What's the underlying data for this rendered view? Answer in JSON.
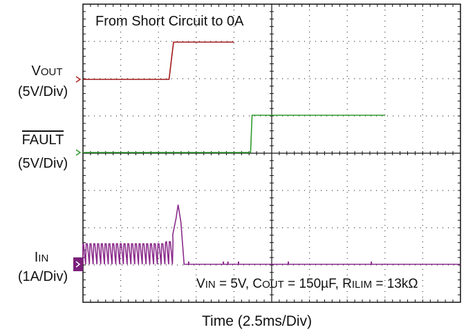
{
  "chart_data": {
    "type": "line",
    "title": "From Short Circuit to 0A",
    "xlabel": "Time  (2.5ms/Div)",
    "x_unit_per_div": 2.5,
    "x_divisions": 10,
    "y_divisions": 8,
    "grid": "dotted",
    "series": [
      {
        "name": "VOUT",
        "label_main": "V",
        "label_sub": "OUT",
        "scale": "(5V/Div)",
        "color": "#a01919",
        "marker_color": "#b22222",
        "points": [
          [
            0,
            0
          ],
          [
            5.7,
            0
          ],
          [
            6.0,
            1.0
          ],
          [
            10,
            1.0
          ]
        ]
      },
      {
        "name": "FAULT",
        "label_main": "FAULT",
        "label_sub": "",
        "scale": "(5V/Div)",
        "color": "#2e9b2e",
        "marker_color": "#2e9b2e",
        "points": [
          [
            0,
            0
          ],
          [
            11.1,
            0
          ],
          [
            11.2,
            1.0
          ],
          [
            20,
            1.0
          ]
        ]
      },
      {
        "name": "IIN",
        "label_main": "I",
        "label_sub": "IN",
        "scale": "(1A/Div)",
        "color": "#8a2a8a",
        "marker_color": "#7a1f7a",
        "pulse_period_ms": 0.25,
        "pulse_peak_A": 0.55,
        "spike_peak_A": 1.6,
        "spike_time_ms": 6.3
      }
    ],
    "annotation": {
      "pre1": "V",
      "sub1": "IN",
      "mid1": " = 5V, C",
      "sub2": "OUT",
      "mid2": " = 150µF, R",
      "sub3": "ILIM",
      "post": " = 13kΩ"
    }
  }
}
